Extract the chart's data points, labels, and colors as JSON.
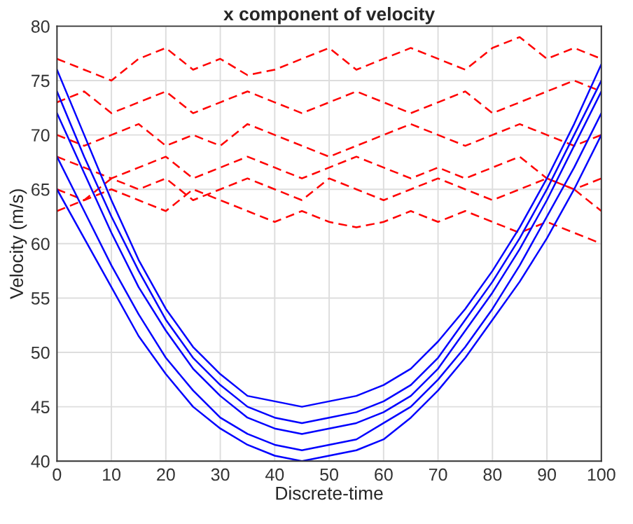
{
  "chart_data": {
    "type": "line",
    "title": "x component of velocity",
    "xlabel": "Discrete-time",
    "ylabel": "Velocity (m/s)",
    "x": [
      0,
      5,
      10,
      15,
      20,
      25,
      30,
      35,
      40,
      45,
      50,
      55,
      60,
      65,
      70,
      75,
      80,
      85,
      90,
      95,
      100
    ],
    "xlim": [
      0,
      100
    ],
    "xticks": [
      0,
      10,
      20,
      30,
      40,
      50,
      60,
      70,
      80,
      90,
      100
    ],
    "ylim": [
      40,
      80
    ],
    "yticks": [
      40,
      45,
      50,
      55,
      60,
      65,
      70,
      75,
      80
    ],
    "grid": true,
    "series": [
      {
        "color": "#ff0000",
        "line_style": "dashed",
        "values": [
          77,
          76,
          75,
          77,
          78,
          76,
          77,
          75.5,
          76,
          77,
          78,
          76,
          77,
          78,
          77,
          76,
          78,
          79,
          77,
          78,
          77
        ]
      },
      {
        "color": "#ff0000",
        "line_style": "dashed",
        "values": [
          73,
          74,
          72,
          73,
          74,
          72,
          73,
          74,
          73,
          72,
          73,
          74,
          73,
          72,
          73,
          74,
          72,
          73,
          74,
          75,
          74
        ]
      },
      {
        "color": "#ff0000",
        "line_style": "dashed",
        "values": [
          70,
          69,
          70,
          71,
          69,
          70,
          69,
          71,
          70,
          69,
          68,
          69,
          70,
          71,
          70,
          69,
          70,
          71,
          70,
          69,
          70
        ]
      },
      {
        "color": "#ff0000",
        "line_style": "dashed",
        "values": [
          68,
          67,
          66,
          67,
          68,
          66,
          67,
          68,
          67,
          66,
          67,
          68,
          67,
          66,
          67,
          66,
          67,
          68,
          66,
          65,
          66
        ]
      },
      {
        "color": "#ff0000",
        "line_style": "dashed",
        "values": [
          65,
          64,
          66,
          65,
          66,
          64,
          65,
          66,
          65,
          64,
          66,
          65,
          64,
          65,
          66,
          65,
          64,
          65,
          66,
          65,
          63
        ]
      },
      {
        "color": "#ff0000",
        "line_style": "dashed",
        "values": [
          63,
          64,
          65,
          64,
          63,
          65,
          64,
          63,
          62,
          63,
          62,
          61.5,
          62,
          63,
          62,
          63,
          62,
          61,
          62,
          61,
          60
        ]
      },
      {
        "color": "#0000ff",
        "line_style": "solid",
        "values": [
          76,
          70,
          64,
          58.5,
          54,
          50.5,
          48,
          46,
          45.5,
          45,
          45.5,
          46,
          47,
          48.5,
          51,
          54,
          57.5,
          61.5,
          66,
          71,
          76.5
        ]
      },
      {
        "color": "#0000ff",
        "line_style": "solid",
        "values": [
          74,
          68,
          62.5,
          57.5,
          53,
          49.5,
          47,
          45,
          44,
          43.5,
          44,
          44.5,
          45.5,
          47,
          49.5,
          53,
          56.5,
          60.5,
          65,
          70,
          75
        ]
      },
      {
        "color": "#0000ff",
        "line_style": "solid",
        "values": [
          72,
          66.5,
          61,
          56,
          52,
          48.5,
          46,
          44,
          43,
          42.5,
          43,
          43.5,
          44.5,
          46,
          48.5,
          52,
          55.5,
          59.5,
          64,
          69,
          74
        ]
      },
      {
        "color": "#0000ff",
        "line_style": "solid",
        "values": [
          68,
          63,
          58,
          53.5,
          49.5,
          46.5,
          44,
          42.5,
          41.5,
          41,
          41.5,
          42,
          43.5,
          45,
          47.5,
          50.5,
          54,
          58,
          62.5,
          67,
          72
        ]
      },
      {
        "color": "#0000ff",
        "line_style": "solid",
        "values": [
          65,
          60.5,
          56,
          51.5,
          48,
          45,
          43,
          41.5,
          40.5,
          40,
          40.5,
          41,
          42,
          44,
          46.5,
          49.5,
          53,
          56.5,
          60.5,
          65,
          70
        ]
      }
    ]
  }
}
